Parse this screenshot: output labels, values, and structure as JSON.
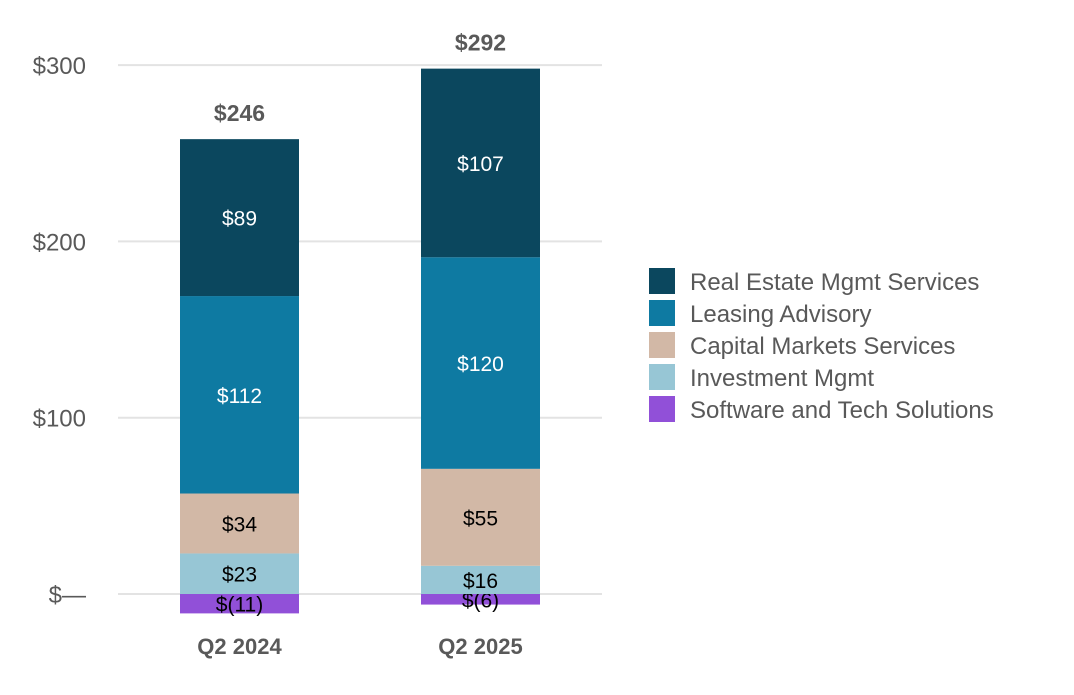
{
  "chart_data": {
    "type": "bar",
    "stacked": true,
    "categories": [
      "Q2 2024",
      "Q2 2025"
    ],
    "totals": [
      "$246",
      "$292"
    ],
    "series": [
      {
        "name": "Software and Tech Solutions",
        "color": "#9150d8",
        "values": [
          -11,
          -6
        ],
        "labels": [
          "$(11)",
          "$(6)"
        ],
        "label_color": "#000000"
      },
      {
        "name": "Investment Mgmt",
        "color": "#97c6d5",
        "values": [
          23,
          16
        ],
        "labels": [
          "$23",
          "$16"
        ],
        "label_color": "#000000"
      },
      {
        "name": "Capital Markets Services",
        "color": "#d2b8a6",
        "values": [
          34,
          55
        ],
        "labels": [
          "$34",
          "$55"
        ],
        "label_color": "#000000"
      },
      {
        "name": "Leasing Advisory",
        "color": "#0e7aa2",
        "values": [
          112,
          120
        ],
        "labels": [
          "$112",
          "$120"
        ],
        "label_color": "#ffffff"
      },
      {
        "name": "Real Estate Mgmt Services",
        "color": "#0b475e",
        "values": [
          89,
          107
        ],
        "labels": [
          "$89",
          "$107"
        ],
        "label_color": "#ffffff"
      }
    ],
    "legend_order": [
      "Real Estate Mgmt Services",
      "Leasing Advisory",
      "Capital Markets Services",
      "Investment Mgmt",
      "Software and Tech Solutions"
    ],
    "yticks": [
      0,
      100,
      200,
      300
    ],
    "ytick_labels": [
      "$—",
      "$100",
      "$200",
      "$300"
    ],
    "ylim": [
      -15,
      300
    ],
    "grid": true,
    "legend_position": "right",
    "title": "",
    "xlabel": "",
    "ylabel": ""
  }
}
